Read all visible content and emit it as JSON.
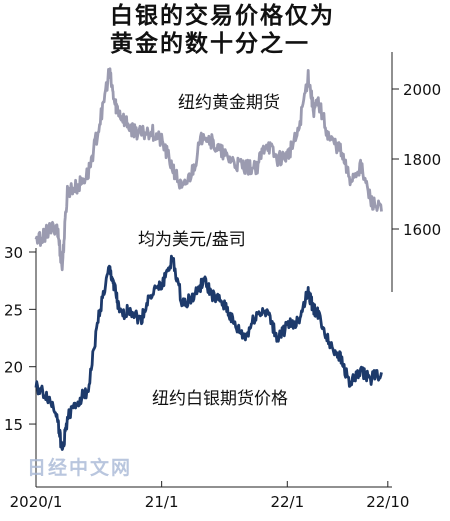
{
  "title_line1": "白银的交易价格仅为",
  "title_line2": "黄金的数十分之一",
  "watermark": "日经中文网",
  "colors": {
    "gold_series": "#9b9bb0",
    "silver_series": "#1d3a6b",
    "axis": "#222222",
    "text": "#111111"
  },
  "chart_data": {
    "type": "line",
    "unit_note": "均为美元/盎司",
    "x_axis": {
      "range": [
        "2020-01",
        "2022-10"
      ],
      "tick_labels": [
        {
          "label": "2020/1",
          "value": "2020-01"
        },
        {
          "label": "21/1",
          "value": "2021-01"
        },
        {
          "label": "22/1",
          "value": "2022-01"
        },
        {
          "label": "22/10",
          "value": "2022-10"
        }
      ]
    },
    "gold_axis": {
      "side": "right",
      "range": [
        1480,
        2100
      ],
      "tick_labels": [
        "2000",
        "1800",
        "1600"
      ],
      "ticks": [
        2000,
        1800,
        1600
      ]
    },
    "silver_axis": {
      "side": "left",
      "range": [
        12,
        31
      ],
      "tick_labels": [
        "30",
        "25",
        "20",
        "15"
      ],
      "ticks": [
        30,
        25,
        20,
        15
      ]
    },
    "series": [
      {
        "name": "纽约黄金期货",
        "axis": "right",
        "x": [
          "2020-01",
          "2020-02",
          "2020-03",
          "2020-03",
          "2020-04",
          "2020-05",
          "2020-06",
          "2020-07",
          "2020-08",
          "2020-08",
          "2020-09",
          "2020-10",
          "2020-11",
          "2020-12",
          "2021-01",
          "2021-02",
          "2021-03",
          "2021-04",
          "2021-05",
          "2021-06",
          "2021-07",
          "2021-08",
          "2021-09",
          "2021-10",
          "2021-11",
          "2021-12",
          "2022-01",
          "2022-02",
          "2022-03",
          "2022-03",
          "2022-04",
          "2022-05",
          "2022-06",
          "2022-07",
          "2022-08",
          "2022-09",
          "2022-10"
        ],
        "values": [
          1560,
          1590,
          1610,
          1490,
          1710,
          1720,
          1760,
          1890,
          2050,
          1960,
          1930,
          1890,
          1870,
          1880,
          1850,
          1780,
          1710,
          1770,
          1880,
          1840,
          1810,
          1790,
          1780,
          1770,
          1850,
          1800,
          1810,
          1870,
          2040,
          1940,
          1960,
          1860,
          1830,
          1740,
          1780,
          1680,
          1650
        ]
      },
      {
        "name": "纽约白银期货价格",
        "axis": "left",
        "x": [
          "2020-01",
          "2020-02",
          "2020-03",
          "2020-03",
          "2020-04",
          "2020-05",
          "2020-06",
          "2020-07",
          "2020-08",
          "2020-08",
          "2020-09",
          "2020-10",
          "2020-11",
          "2020-12",
          "2021-01",
          "2021-02",
          "2021-03",
          "2021-04",
          "2021-05",
          "2021-06",
          "2021-07",
          "2021-08",
          "2021-09",
          "2021-10",
          "2021-11",
          "2021-12",
          "2022-01",
          "2022-02",
          "2022-03",
          "2022-03",
          "2022-04",
          "2022-05",
          "2022-06",
          "2022-07",
          "2022-08",
          "2022-09",
          "2022-10"
        ],
        "values": [
          18.2,
          17.5,
          16.0,
          12.5,
          15.5,
          17.0,
          18.0,
          24.5,
          28.5,
          27.0,
          24.5,
          25.0,
          24.0,
          26.5,
          27.0,
          29.5,
          25.5,
          26.0,
          27.5,
          26.0,
          25.5,
          23.5,
          22.5,
          24.5,
          25.0,
          22.5,
          23.5,
          24.0,
          26.5,
          25.0,
          24.5,
          22.0,
          21.0,
          18.5,
          19.5,
          19.0,
          19.5
        ]
      }
    ]
  }
}
